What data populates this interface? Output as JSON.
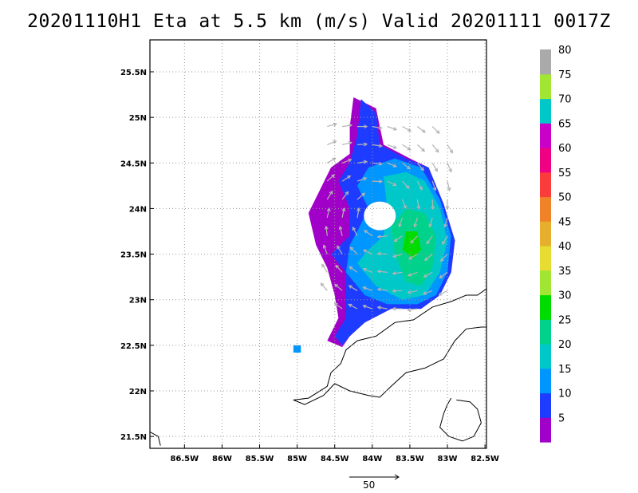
{
  "title": "20201110H1 Eta at 5.5 km (m/s) Valid 20201111  0017Z",
  "map": {
    "lon_labels": [
      "86.5W",
      "86W",
      "85.5W",
      "85W",
      "84.5W",
      "84W",
      "83.5W",
      "83W",
      "82.5W"
    ],
    "lon_values": [
      -86.5,
      -86,
      -85.5,
      -85,
      -84.5,
      -84,
      -83.5,
      -83,
      -82.5
    ],
    "lat_labels": [
      "21.5N",
      "22N",
      "22.5N",
      "23N",
      "23.5N",
      "24N",
      "24.5N",
      "25N",
      "25.5N"
    ],
    "lat_values": [
      21.5,
      22,
      22.5,
      23,
      23.5,
      24,
      24.5,
      25,
      25.5
    ],
    "extent": {
      "lon_min": -86.96,
      "lon_max": -82.48,
      "lat_min": 21.37,
      "lat_max": 25.85
    },
    "storm_center": {
      "lon": -83.9,
      "lat": 23.92
    }
  },
  "colorbar": {
    "labels": [
      "5",
      "10",
      "15",
      "20",
      "25",
      "30",
      "35",
      "40",
      "45",
      "50",
      "55",
      "60",
      "65",
      "70",
      "75",
      "80"
    ],
    "colors": [
      "#a000c8",
      "#1e3cff",
      "#0096ff",
      "#00c8c8",
      "#00d28c",
      "#00dc00",
      "#a0e632",
      "#e6dc32",
      "#e6af2d",
      "#f08228",
      "#fa3c3c",
      "#f00082",
      "#c800c8",
      "#00c8c8",
      "#a0e632",
      "#aaaaaa"
    ]
  },
  "reference_vector": {
    "label": "50"
  },
  "coastline_color": "#000000",
  "grid_color": "#999999"
}
